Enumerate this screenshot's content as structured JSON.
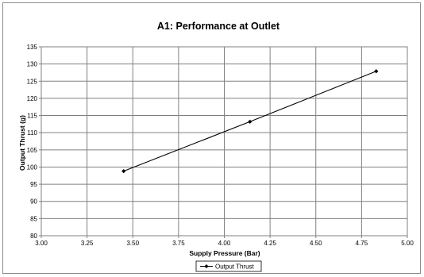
{
  "chart_data": {
    "type": "line",
    "title": "A1: Performance at Outlet",
    "xlabel": "Supply Pressure (Bar)",
    "ylabel": "Output Thrust (g)",
    "xlim": [
      3.0,
      5.0
    ],
    "ylim": [
      80,
      135
    ],
    "x_ticks": [
      "3.00",
      "3.25",
      "3.50",
      "3.75",
      "4.00",
      "4.25",
      "4.50",
      "4.75",
      "5.00"
    ],
    "y_ticks": [
      "80",
      "85",
      "90",
      "95",
      "100",
      "105",
      "110",
      "115",
      "120",
      "125",
      "130",
      "135"
    ],
    "grid": true,
    "legend_position": "bottom",
    "series": [
      {
        "name": "Output Thrust",
        "color": "#000000",
        "marker": "diamond",
        "x": [
          3.45,
          4.14,
          4.83
        ],
        "y": [
          98.8,
          113.2,
          127.9
        ]
      }
    ]
  }
}
